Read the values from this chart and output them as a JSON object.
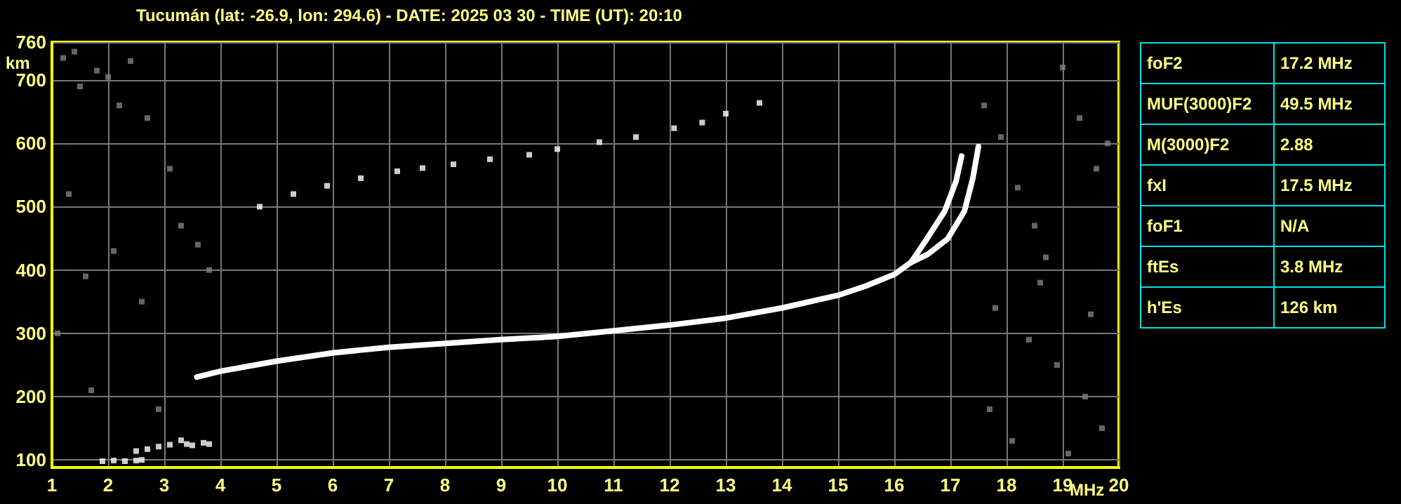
{
  "chart_data": {
    "type": "scatter",
    "title": "Tucumán (lat: -26.9, lon: 294.6) - DATE: 2025 03 30 - TIME (UT): 20:10",
    "xlabel": "MHz",
    "ylabel": "km",
    "xlim": [
      1,
      20
    ],
    "xticks": [
      1,
      2,
      3,
      4,
      5,
      6,
      7,
      8,
      9,
      10,
      11,
      12,
      13,
      14,
      15,
      16,
      17,
      18,
      19,
      20
    ],
    "ylim": [
      88,
      760
    ],
    "yticks": [
      100,
      200,
      300,
      400,
      500,
      600,
      700,
      760
    ],
    "grid": true,
    "marker": "square",
    "series": [
      {
        "type": "line",
        "marker": "none",
        "line_style": "solid",
        "color": "#ffffff",
        "x": [
          3.58,
          4,
          5,
          6,
          7,
          8,
          9,
          10,
          11,
          12,
          13,
          14,
          15,
          15.5,
          16,
          16.3,
          16.58,
          16.9,
          17.1,
          17.2
        ],
        "values": [
          231,
          240,
          256,
          269,
          278,
          284,
          290,
          295,
          304,
          313,
          324,
          340,
          360,
          375,
          393,
          412,
          449,
          493,
          540,
          580
        ]
      },
      {
        "type": "line",
        "marker": "none",
        "line_style": "solid",
        "color": "#ffffff",
        "x": [
          16.3,
          16.6,
          16.95,
          17.25,
          17.4,
          17.5
        ],
        "values": [
          412,
          425,
          449,
          493,
          545,
          595
        ]
      },
      {
        "color": "#ffffff",
        "x": [
          1.9,
          2.1,
          2.3,
          2.5,
          2.6
        ],
        "values": [
          98,
          99,
          98,
          99,
          100
        ]
      },
      {
        "color": "#ffffff",
        "x": [
          2.5,
          2.7,
          2.9,
          3.1,
          3.3,
          3.4,
          3.5,
          3.7,
          3.8
        ],
        "values": [
          114,
          117,
          121,
          124,
          131,
          125,
          123,
          127,
          125
        ]
      },
      {
        "color": "#ffffff",
        "x": [
          4.7,
          5.3,
          5.9,
          6.5,
          7.15,
          7.6,
          8.15,
          8.8,
          9.5,
          10.0,
          10.75,
          11.4,
          12.08,
          12.58,
          13.0,
          13.6
        ],
        "values": [
          500,
          520,
          533,
          545,
          556,
          561,
          567,
          575,
          582,
          591,
          602,
          610,
          624,
          633,
          647,
          664
        ]
      },
      {
        "color": "#808080",
        "x": [
          1.2,
          1.4,
          1.5,
          1.8,
          2.0,
          2.2,
          2.4,
          2.7,
          3.1,
          3.3,
          3.6,
          1.3,
          1.6,
          2.1,
          2.6,
          3.8,
          1.1,
          1.7,
          2.9,
          17.6,
          17.9,
          18.2,
          18.5,
          18.7,
          19.0,
          19.3,
          19.6,
          19.8,
          17.8,
          18.4,
          18.9,
          19.4,
          19.7,
          18.1,
          19.1,
          17.7,
          18.6,
          19.5
        ],
        "values": [
          735,
          745,
          690,
          715,
          705,
          660,
          730,
          640,
          560,
          470,
          440,
          520,
          390,
          430,
          350,
          400,
          300,
          210,
          180,
          660,
          610,
          530,
          470,
          420,
          720,
          640,
          560,
          600,
          340,
          290,
          250,
          200,
          150,
          130,
          110,
          180,
          380,
          330
        ]
      }
    ],
    "annotations": [
      "foF2",
      "17.2 MHz",
      "MUF(3000)F2",
      "49.5 MHz",
      "M(3000)F2",
      "2.88",
      "fxI",
      "17.5 MHz",
      "foF1",
      "N/A",
      "ftEs",
      "3.8 MHz",
      "h'Es",
      "126 km"
    ]
  }
}
